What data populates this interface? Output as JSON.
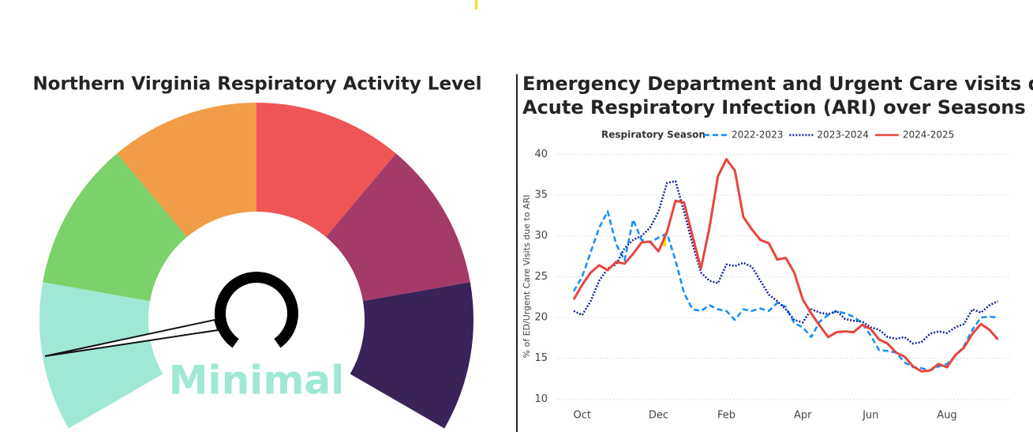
{
  "gauge": {
    "title": "Northern Virginia Respiratory Activity Level",
    "level": "Minimal"
  },
  "chart_data": {
    "type": "line",
    "title": [
      "Emergency Department and Urgent Care visits due to",
      "Acute Respiratory Infection (ARI) over Seasons"
    ],
    "legend_title": "Respiratory Season",
    "y_label": "% of ED/Urgent Care Visits due to ARI",
    "categories": [
      null,
      "Oct",
      null,
      null,
      null,
      null,
      null,
      null,
      null,
      null,
      "Dec",
      null,
      null,
      null,
      null,
      null,
      null,
      null,
      "Feb",
      null,
      null,
      null,
      null,
      null,
      null,
      null,
      null,
      "Apr",
      null,
      null,
      null,
      null,
      null,
      null,
      null,
      "Jun",
      null,
      null,
      null,
      null,
      null,
      null,
      null,
      null,
      "Aug",
      null,
      null,
      null,
      null,
      null,
      null
    ],
    "series": [
      {
        "name": "2022-2023",
        "color": "#118dff",
        "dash": "dashed",
        "values": [
          23.2,
          25,
          28,
          31,
          33,
          29,
          27,
          32,
          29.5,
          29.2,
          29.8,
          30.3,
          27,
          23,
          21,
          20.8,
          21.5,
          21,
          20.8,
          19.7,
          21,
          20.8,
          21.1,
          20.8,
          21.8,
          21.3,
          19.3,
          18.8,
          17.6,
          19.5,
          20.3,
          20.8,
          20.5,
          20.1,
          19.3,
          17.8,
          16,
          15.9,
          15.7,
          14.5,
          13.9,
          13.8,
          13.5,
          14,
          14.3,
          15.3,
          16.5,
          18.5,
          20,
          20.1,
          20
        ]
      },
      {
        "name": "2023-2024",
        "color": "#12239e",
        "dash": "dotted",
        "values": [
          20.8,
          20.3,
          22,
          24.5,
          26,
          26.5,
          28.5,
          29.5,
          30,
          31,
          33,
          36.5,
          36.7,
          33,
          29,
          25.5,
          24.5,
          24.2,
          26.5,
          26.3,
          26.7,
          26.2,
          24.5,
          22.8,
          22,
          21,
          19.7,
          19.4,
          21,
          20.6,
          20.4,
          20.8,
          19.8,
          19.6,
          19.5,
          18.8,
          18.5,
          17.6,
          17.4,
          17.6,
          16.8,
          17,
          18,
          18.3,
          18.1,
          18.8,
          19.2,
          21,
          20.6,
          21.5,
          22
        ]
      },
      {
        "name": "2024-2025",
        "color": "#e8453c",
        "dash": "solid",
        "values": [
          22.2,
          24,
          25.5,
          26.4,
          25.8,
          26.8,
          26.6,
          27.8,
          29.2,
          29.3,
          28.1,
          30.5,
          34.3,
          34.1,
          30,
          26,
          31,
          37.3,
          39.4,
          38,
          32.3,
          30.8,
          29.5,
          29.1,
          27.1,
          27.3,
          25.5,
          22.2,
          20.5,
          19,
          17.6,
          18.2,
          18.3,
          18.2,
          19.1,
          18.6,
          17.3,
          16.8,
          15.7,
          15.2,
          14,
          13.4,
          13.5,
          14.3,
          13.9,
          15.4,
          16.3,
          18,
          19.2,
          18.5,
          17.3
        ]
      }
    ],
    "ylim": [
      8,
      41
    ],
    "yticks": [
      10,
      15,
      20,
      25,
      30,
      35,
      40
    ],
    "grid": true
  }
}
